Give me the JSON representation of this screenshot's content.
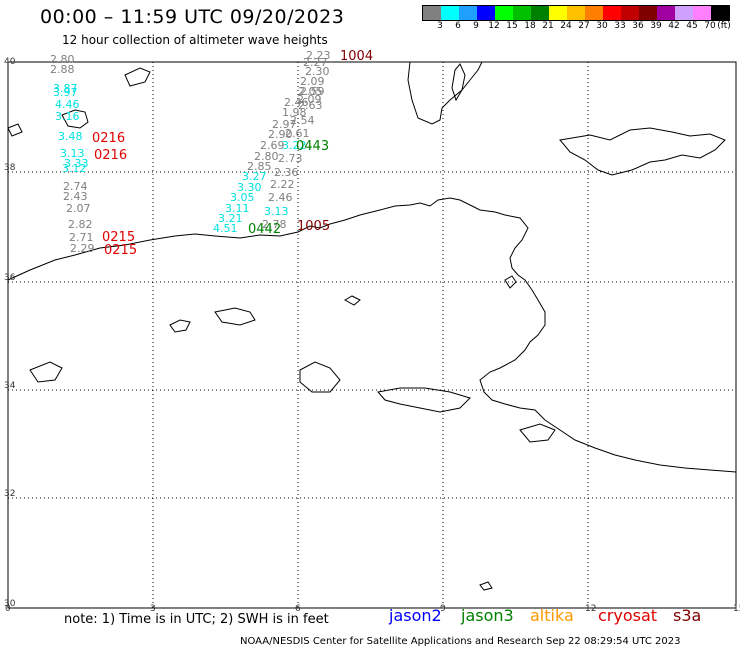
{
  "header": {
    "title": "00:00 – 11:59 UTC 09/20/2023",
    "subtitle": "12 hour collection of altimeter wave heights"
  },
  "colorbar": {
    "colors": [
      "#808080",
      "#00ffff",
      "#1fa0ff",
      "#0000ff",
      "#00ff00",
      "#00c000",
      "#008000",
      "#ffff00",
      "#ffc000",
      "#ff8000",
      "#ff0000",
      "#c00000",
      "#800000",
      "#a000a0",
      "#d0a0ff",
      "#ff80ff",
      "#000000"
    ],
    "labels": [
      "3",
      "6",
      "9",
      "12",
      "15",
      "18",
      "21",
      "24",
      "27",
      "30",
      "33",
      "36",
      "39",
      "42",
      "45",
      "70",
      "(ft)"
    ]
  },
  "axes": {
    "lat_labels": [
      "40",
      "38",
      "36",
      "34",
      "32",
      "30"
    ],
    "lon_labels": [
      "0",
      "3",
      "6",
      "9",
      "12",
      "15"
    ]
  },
  "observations": [
    {
      "value": "2.80",
      "color": "#808080"
    },
    {
      "value": "2.88",
      "color": "#808080"
    },
    {
      "value": "3.87",
      "color": "#00e0e0"
    },
    {
      "value": "3.97",
      "color": "#00e0e0"
    },
    {
      "value": "4.46",
      "color": "#00e0e0"
    },
    {
      "value": "3.16",
      "color": "#00e0e0"
    },
    {
      "value": "3.48",
      "color": "#00e0e0"
    },
    {
      "value": "3.13",
      "color": "#00e0e0"
    },
    {
      "value": "3.33",
      "color": "#00e0e0"
    },
    {
      "value": "3.12",
      "color": "#00e0e0"
    },
    {
      "value": "2.74",
      "color": "#808080"
    },
    {
      "value": "2.43",
      "color": "#808080"
    },
    {
      "value": "2.07",
      "color": "#808080"
    },
    {
      "value": "2.82",
      "color": "#808080"
    },
    {
      "value": "2.71",
      "color": "#808080"
    },
    {
      "value": "2.29",
      "color": "#808080"
    },
    {
      "value": "2.23",
      "color": "#808080"
    },
    {
      "value": "2.27",
      "color": "#808080"
    },
    {
      "value": "2.30",
      "color": "#808080"
    },
    {
      "value": "2.09",
      "color": "#808080"
    },
    {
      "value": "2.05",
      "color": "#808080"
    },
    {
      "value": "2.09",
      "color": "#808080"
    },
    {
      "value": "2.59",
      "color": "#808080"
    },
    {
      "value": "2.46",
      "color": "#808080"
    },
    {
      "value": "2.63",
      "color": "#808080"
    },
    {
      "value": "1.98",
      "color": "#808080"
    },
    {
      "value": "2.54",
      "color": "#808080"
    },
    {
      "value": "2.97",
      "color": "#808080"
    },
    {
      "value": "2.90",
      "color": "#808080"
    },
    {
      "value": "2.61",
      "color": "#808080"
    },
    {
      "value": "2.69",
      "color": "#808080"
    },
    {
      "value": "3.22",
      "color": "#00e0e0"
    },
    {
      "value": "2.80",
      "color": "#808080"
    },
    {
      "value": "2.73",
      "color": "#808080"
    },
    {
      "value": "2.85",
      "color": "#808080"
    },
    {
      "value": "2.36",
      "color": "#808080"
    },
    {
      "value": "3.27",
      "color": "#00e0e0"
    },
    {
      "value": "2.22",
      "color": "#808080"
    },
    {
      "value": "3.30",
      "color": "#00e0e0"
    },
    {
      "value": "3.05",
      "color": "#00e0e0"
    },
    {
      "value": "2.46",
      "color": "#808080"
    },
    {
      "value": "3.11",
      "color": "#00e0e0"
    },
    {
      "value": "3.13",
      "color": "#00e0e0"
    },
    {
      "value": "3.21",
      "color": "#00e0e0"
    },
    {
      "value": "2.78",
      "color": "#808080"
    },
    {
      "value": "4.51",
      "color": "#00e0e0"
    }
  ],
  "track_ids": [
    {
      "text": "1004",
      "color": "#800000"
    },
    {
      "text": "0216",
      "color": "#e00000"
    },
    {
      "text": "0216",
      "color": "#e00000"
    },
    {
      "text": "0443",
      "color": "#008000"
    },
    {
      "text": "1005",
      "color": "#800000"
    },
    {
      "text": "0442",
      "color": "#008000"
    },
    {
      "text": "0215",
      "color": "#e00000"
    },
    {
      "text": "0215",
      "color": "#e00000"
    }
  ],
  "footer": {
    "note": "note: 1) Time is in UTC; 2) SWH is in feet",
    "satellites": [
      {
        "name": "jason2",
        "color": "#0000ff"
      },
      {
        "name": "jason3",
        "color": "#008000"
      },
      {
        "name": "altika",
        "color": "#ff9900"
      },
      {
        "name": "cryosat",
        "color": "#e00000"
      },
      {
        "name": "s3a",
        "color": "#800000"
      }
    ],
    "credit": "NOAA/NESDIS Center for Satellite Applications and Research    Sep 22 08:29:54 UTC 2023"
  }
}
